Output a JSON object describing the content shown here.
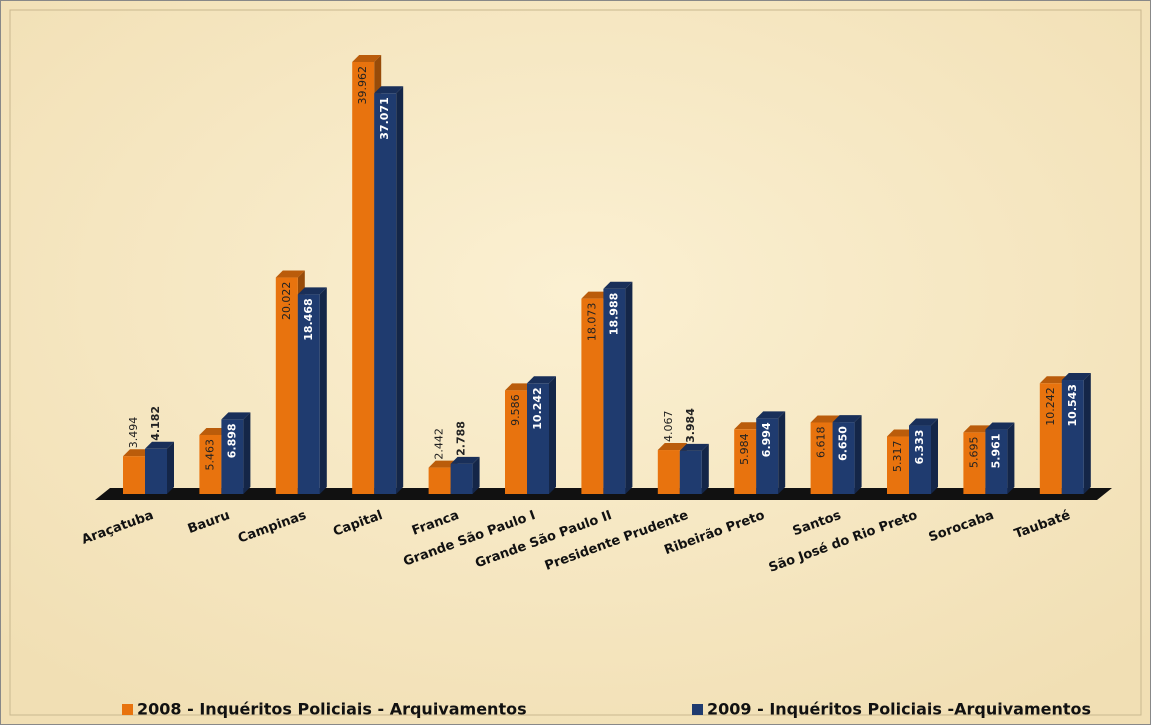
{
  "chart_data": {
    "type": "bar",
    "categories": [
      "Araçatuba",
      "Bauru",
      "Campinas",
      "Capital",
      "Franca",
      "Grande São Paulo I",
      "Grande São Paulo II",
      "Presidente Prudente",
      "Ribeirão Preto",
      "Santos",
      "São José do Rio Preto",
      "Sorocaba",
      "Taubaté"
    ],
    "series": [
      {
        "name": "2008 - Inquéritos Policiais - Arquivamentos",
        "color": "#e8730e",
        "values": [
          3494,
          5463,
          20022,
          39962,
          2442,
          9586,
          18073,
          4067,
          5984,
          6618,
          5317,
          5695,
          10242
        ],
        "value_labels": [
          "3.494",
          "5.463",
          "20.022",
          "39.962",
          "2.442",
          "9.586",
          "18.073",
          "4.067",
          "5.984",
          "6.618",
          "5.317",
          "5.695",
          "10.242"
        ]
      },
      {
        "name": "2009 - Inquéritos Policiais -Arquivamentos",
        "color": "#1f3b6f",
        "values": [
          4182,
          6898,
          18468,
          37071,
          2788,
          10242,
          18988,
          3984,
          6994,
          6650,
          6333,
          5961,
          10543
        ],
        "value_labels": [
          "4.182",
          "6.898",
          "18.468",
          "37.071",
          "2.788",
          "10.242",
          "18.988",
          "3.984",
          "6.994",
          "6.650",
          "6.333",
          "5.961",
          "10.543"
        ]
      }
    ]
  }
}
